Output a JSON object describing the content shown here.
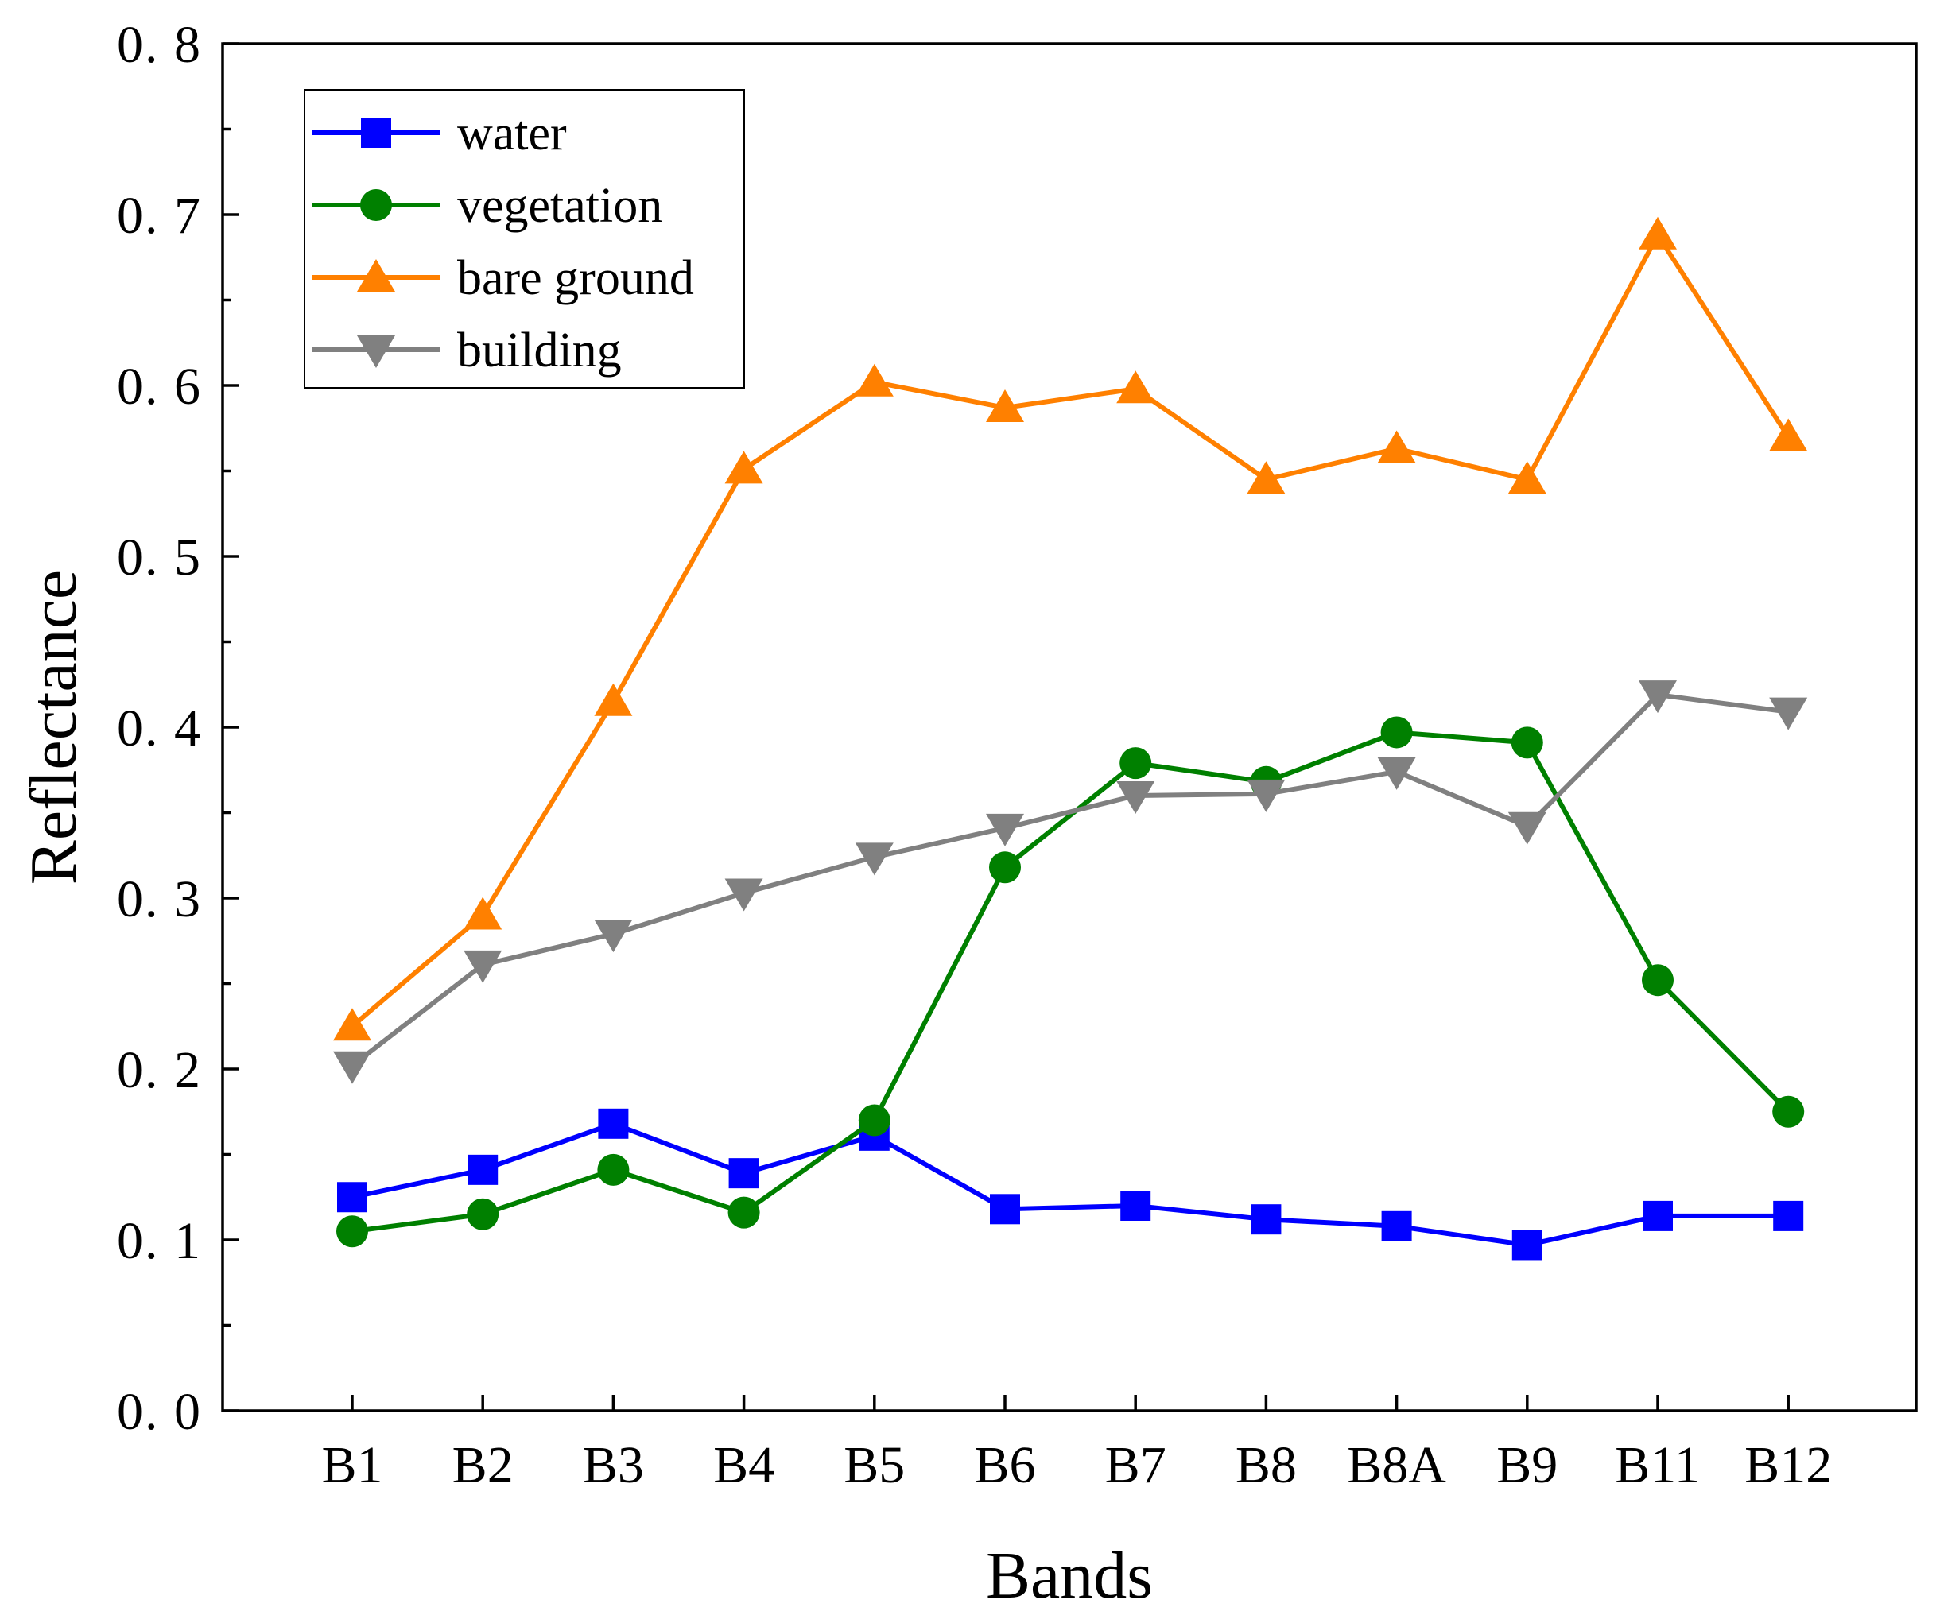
{
  "chart_data": {
    "type": "line",
    "xlabel": "Bands",
    "ylabel": "Reflectance",
    "ylim": [
      0,
      0.8
    ],
    "y_ticks": [
      "0. 0",
      "0. 1",
      "0. 2",
      "0. 3",
      "0. 4",
      "0. 5",
      "0. 6",
      "0. 7",
      "0. 8"
    ],
    "categories": [
      "B1",
      "B2",
      "B3",
      "B4",
      "B5",
      "B6",
      "B7",
      "B8",
      "B8A",
      "B9",
      "B11",
      "B12"
    ],
    "legend_position": "top-left",
    "series": [
      {
        "name": "water",
        "color": "#0000ff",
        "marker": "square",
        "values": [
          0.125,
          0.141,
          0.168,
          0.139,
          0.161,
          0.118,
          0.12,
          0.112,
          0.108,
          0.097,
          0.114,
          0.114
        ]
      },
      {
        "name": "vegetation",
        "color": "#008000",
        "marker": "circle",
        "values": [
          0.105,
          0.115,
          0.141,
          0.116,
          0.17,
          0.318,
          0.379,
          0.368,
          0.397,
          0.391,
          0.252,
          0.175
        ]
      },
      {
        "name": "bare ground",
        "color": "#ff8000",
        "marker": "triangle-up",
        "values": [
          0.225,
          0.29,
          0.415,
          0.551,
          0.602,
          0.587,
          0.598,
          0.545,
          0.563,
          0.545,
          0.688,
          0.57
        ]
      },
      {
        "name": "building",
        "color": "#808080",
        "marker": "triangle-down",
        "values": [
          0.202,
          0.261,
          0.279,
          0.303,
          0.324,
          0.341,
          0.36,
          0.361,
          0.374,
          0.342,
          0.419,
          0.409
        ]
      }
    ]
  }
}
